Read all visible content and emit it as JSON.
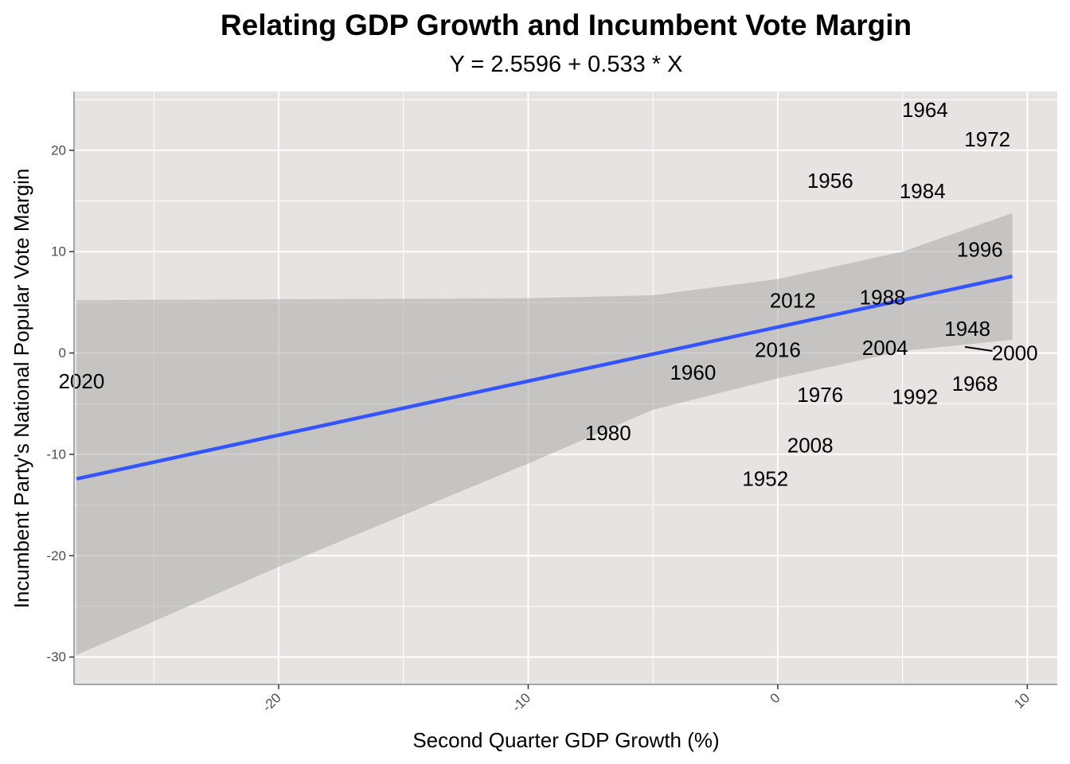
{
  "chart_data": {
    "type": "scatter",
    "title": "Relating GDP Growth and Incumbent Vote Margin",
    "subtitle": "Y = 2.5596 + 0.533 * X",
    "xlabel": "Second Quarter GDP Growth (%)",
    "ylabel": "Incumbent Party's National Popular Vote Margin",
    "xlim": [
      -28.2,
      11.2
    ],
    "ylim": [
      -32.7,
      25.8
    ],
    "x_ticks": [
      -20,
      -10,
      0,
      10
    ],
    "x_tick_labels": [
      "-20",
      "-10",
      "0",
      "10"
    ],
    "y_ticks": [
      -30,
      -20,
      -10,
      0,
      10,
      20
    ],
    "y_tick_labels": [
      "-30",
      "-20",
      "-10",
      "0",
      "10",
      "20"
    ],
    "grid": true,
    "regression": {
      "intercept": 2.5596,
      "slope": 0.533,
      "x_range": [
        -28.1,
        9.4
      ],
      "line_color": "#3355ff",
      "ribbon_color": "#aaa9a9",
      "confidence_band": [
        {
          "x": -28.1,
          "lower": -29.8,
          "upper": 5.2
        },
        {
          "x": -20,
          "lower": -21.1,
          "upper": 5.3
        },
        {
          "x": -10,
          "lower": -10.9,
          "upper": 5.4
        },
        {
          "x": -5,
          "lower": -5.6,
          "upper": 5.7
        },
        {
          "x": 0,
          "lower": -2.5,
          "upper": 7.3
        },
        {
          "x": 5,
          "lower": 0.2,
          "upper": 10.0
        },
        {
          "x": 9.4,
          "lower": 1.3,
          "upper": 13.8
        }
      ]
    },
    "points": [
      {
        "label": "2020",
        "x": -27.9,
        "y": -2.8
      },
      {
        "label": "1964",
        "x": 5.9,
        "y": 24.0
      },
      {
        "label": "1972",
        "x": 8.4,
        "y": 21.1
      },
      {
        "label": "1956",
        "x": 2.1,
        "y": 17.0
      },
      {
        "label": "1984",
        "x": 5.8,
        "y": 16.0
      },
      {
        "label": "1996",
        "x": 8.1,
        "y": 10.2
      },
      {
        "label": "2012",
        "x": 0.6,
        "y": 5.2
      },
      {
        "label": "1988",
        "x": 4.2,
        "y": 5.5
      },
      {
        "label": "1948",
        "x": 7.6,
        "y": 2.4
      },
      {
        "label": "2000",
        "x": 9.5,
        "y": 0.0
      },
      {
        "label": "2016",
        "x": 0.0,
        "y": 0.3
      },
      {
        "label": "2004",
        "x": 4.3,
        "y": 0.5
      },
      {
        "label": "1960",
        "x": -3.4,
        "y": -1.9
      },
      {
        "label": "1976",
        "x": 1.7,
        "y": -4.1
      },
      {
        "label": "1992",
        "x": 5.5,
        "y": -4.3
      },
      {
        "label": "1968",
        "x": 7.9,
        "y": -3.0
      },
      {
        "label": "1980",
        "x": -6.8,
        "y": -7.9
      },
      {
        "label": "2008",
        "x": 1.3,
        "y": -9.1
      },
      {
        "label": "1952",
        "x": -0.5,
        "y": -12.4
      }
    ],
    "leader_line": {
      "label": "2000",
      "x1": 7.5,
      "y1": 0.6,
      "x2": 8.6,
      "y2": 0.2
    },
    "panel_background": "#e8e3e3",
    "grid_color": "#ffffff"
  }
}
